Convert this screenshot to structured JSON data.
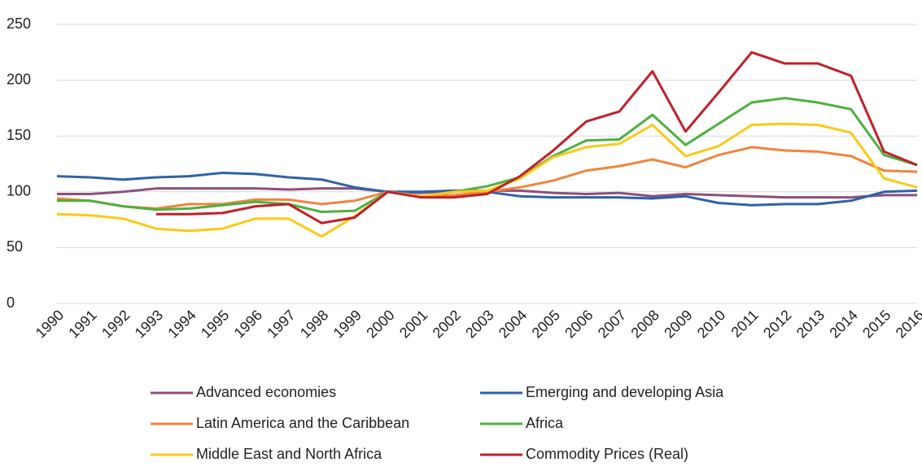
{
  "chart_data": {
    "type": "line",
    "x": [
      "1990",
      "1991",
      "1992",
      "1993",
      "1994",
      "1995",
      "1996",
      "1997",
      "1998",
      "1999",
      "2000",
      "2001",
      "2002",
      "2003",
      "2004",
      "2005",
      "2006",
      "2007",
      "2008",
      "2009",
      "2010",
      "2011",
      "2012",
      "2013",
      "2014",
      "2015",
      "2016"
    ],
    "ylim": [
      0,
      250
    ],
    "yticks": [
      0,
      50,
      100,
      150,
      200,
      250
    ],
    "grid": true,
    "series": [
      {
        "name": "Advanced economies",
        "color": "#8e4f7e",
        "values": [
          98,
          98,
          100,
          103,
          103,
          103,
          103,
          102,
          103,
          103,
          100,
          99,
          101,
          101,
          101,
          99,
          98,
          99,
          96,
          98,
          97,
          96,
          95,
          95,
          95,
          97,
          97
        ]
      },
      {
        "name": "Emerging and developing Asia",
        "color": "#2e62a8",
        "values": [
          114,
          113,
          111,
          113,
          114,
          117,
          116,
          113,
          111,
          104,
          100,
          100,
          101,
          100,
          96,
          95,
          95,
          95,
          94,
          96,
          90,
          88,
          89,
          89,
          92,
          100,
          101
        ]
      },
      {
        "name": "Latin America and the Caribbean",
        "color": "#f0843c",
        "values": [
          94,
          92,
          87,
          85,
          89,
          89,
          93,
          93,
          89,
          92,
          100,
          96,
          97,
          100,
          104,
          110,
          119,
          123,
          129,
          122,
          133,
          140,
          137,
          136,
          132,
          119,
          118
        ]
      },
      {
        "name": "Africa",
        "color": "#4db03f",
        "values": [
          92,
          92,
          87,
          84,
          85,
          88,
          91,
          89,
          82,
          83,
          100,
          96,
          100,
          105,
          113,
          132,
          146,
          147,
          169,
          142,
          161,
          180,
          184,
          180,
          174,
          133,
          124
        ]
      },
      {
        "name": "Middle East and North Africa",
        "color": "#fbc918",
        "values": [
          80,
          79,
          76,
          67,
          65,
          67,
          76,
          76,
          60,
          78,
          100,
          96,
          100,
          101,
          112,
          131,
          140,
          143,
          160,
          132,
          141,
          160,
          161,
          160,
          153,
          112,
          104
        ]
      },
      {
        "name": "Commodity Prices (Real)",
        "color": "#c0202a",
        "values": [
          null,
          null,
          null,
          80,
          80,
          81,
          87,
          89,
          72,
          77,
          100,
          95,
          95,
          98,
          114,
          137,
          163,
          172,
          208,
          154,
          189,
          225,
          215,
          215,
          204,
          136,
          124
        ]
      }
    ]
  }
}
